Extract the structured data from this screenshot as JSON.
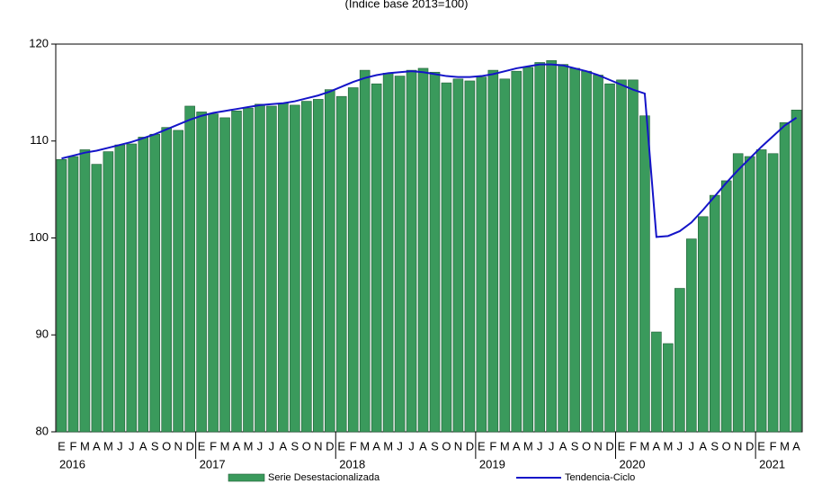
{
  "chart_data": {
    "type": "bar",
    "title": "(Índice base 2013=100)",
    "categories": [
      "E",
      "F",
      "M",
      "A",
      "M",
      "J",
      "J",
      "A",
      "S",
      "O",
      "N",
      "D",
      "E",
      "F",
      "M",
      "A",
      "M",
      "J",
      "J",
      "A",
      "S",
      "O",
      "N",
      "D",
      "E",
      "F",
      "M",
      "A",
      "M",
      "J",
      "J",
      "A",
      "S",
      "O",
      "N",
      "D",
      "E",
      "F",
      "M",
      "A",
      "M",
      "J",
      "J",
      "A",
      "S",
      "O",
      "N",
      "D",
      "E",
      "F",
      "M",
      "A",
      "M",
      "J",
      "J",
      "A",
      "S",
      "O",
      "N",
      "D",
      "E",
      "F",
      "M",
      "A"
    ],
    "years": [
      "2016",
      "2017",
      "2018",
      "2019",
      "2020",
      "2021"
    ],
    "series": [
      {
        "name": "Serie Desestacionalizada",
        "type": "bar",
        "color": "#3a9a5c",
        "values": [
          108.1,
          108.4,
          109.1,
          107.6,
          108.9,
          109.6,
          109.7,
          110.4,
          110.7,
          111.4,
          111.1,
          113.6,
          113.0,
          112.8,
          112.4,
          113.1,
          113.4,
          113.8,
          113.6,
          113.9,
          113.7,
          114.1,
          114.3,
          115.3,
          114.6,
          115.5,
          117.3,
          115.9,
          117.0,
          116.7,
          117.3,
          117.5,
          117.1,
          116.0,
          116.4,
          116.2,
          116.6,
          117.3,
          116.4,
          117.2,
          117.6,
          118.1,
          118.3,
          117.9,
          117.5,
          117.2,
          116.8,
          115.9,
          116.3,
          116.3,
          112.6,
          90.3,
          89.1,
          94.8,
          99.9,
          102.2,
          104.4,
          105.9,
          108.7,
          108.4,
          109.1,
          108.7,
          111.9,
          113.2
        ]
      },
      {
        "name": "Tendencia-Ciclo",
        "type": "line",
        "color": "#1414c8",
        "values": [
          108.2,
          108.5,
          108.8,
          109.0,
          109.3,
          109.6,
          109.9,
          110.3,
          110.7,
          111.2,
          111.7,
          112.2,
          112.6,
          112.9,
          113.1,
          113.3,
          113.5,
          113.7,
          113.8,
          113.9,
          114.1,
          114.4,
          114.7,
          115.1,
          115.6,
          116.1,
          116.5,
          116.8,
          117.0,
          117.1,
          117.2,
          117.1,
          116.9,
          116.7,
          116.6,
          116.6,
          116.7,
          116.9,
          117.2,
          117.5,
          117.7,
          117.9,
          117.9,
          117.8,
          117.5,
          117.2,
          116.8,
          116.3,
          115.8,
          115.3,
          114.9,
          100.1,
          100.2,
          100.7,
          101.6,
          102.9,
          104.3,
          105.7,
          107.0,
          108.2,
          109.4,
          110.5,
          111.6,
          112.4
        ]
      }
    ],
    "ylim": [
      80,
      120
    ],
    "yticks": [
      80,
      90,
      100,
      110,
      120
    ]
  }
}
